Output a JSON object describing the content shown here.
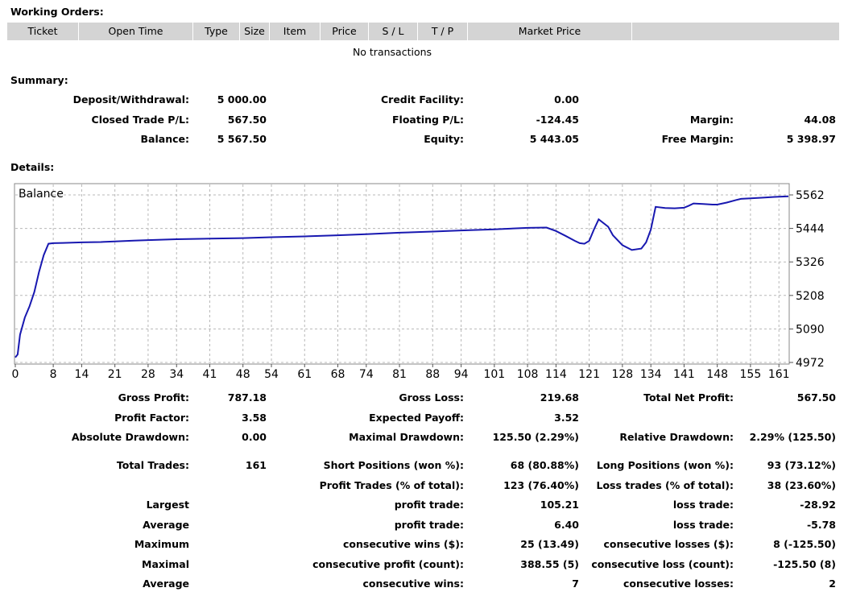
{
  "working_orders": {
    "title": "Working Orders:",
    "columns": [
      "Ticket",
      "Open Time",
      "Type",
      "Size",
      "Item",
      "Price",
      "S / L",
      "T / P",
      "Market Price",
      ""
    ],
    "empty_text": "No transactions"
  },
  "summary": {
    "title": "Summary:",
    "deposit_label": "Deposit/Withdrawal:",
    "deposit_value": "5 000.00",
    "credit_label": "Credit Facility:",
    "credit_value": "0.00",
    "closed_pl_label": "Closed Trade P/L:",
    "closed_pl_value": "567.50",
    "floating_pl_label": "Floating P/L:",
    "floating_pl_value": "-124.45",
    "margin_label": "Margin:",
    "margin_value": "44.08",
    "balance_label": "Balance:",
    "balance_value": "5 567.50",
    "equity_label": "Equity:",
    "equity_value": "5 443.05",
    "free_margin_label": "Free Margin:",
    "free_margin_value": "5 398.97"
  },
  "details": {
    "title": "Details:",
    "gross_profit_label": "Gross Profit:",
    "gross_profit_value": "787.18",
    "gross_loss_label": "Gross Loss:",
    "gross_loss_value": "219.68",
    "total_net_label": "Total Net Profit:",
    "total_net_value": "567.50",
    "profit_factor_label": "Profit Factor:",
    "profit_factor_value": "3.58",
    "expected_payoff_label": "Expected Payoff:",
    "expected_payoff_value": "3.52",
    "abs_dd_label": "Absolute Drawdown:",
    "abs_dd_value": "0.00",
    "max_dd_label": "Maximal Drawdown:",
    "max_dd_value": "125.50 (2.29%)",
    "rel_dd_label": "Relative Drawdown:",
    "rel_dd_value": "2.29% (125.50)",
    "total_trades_label": "Total Trades:",
    "total_trades_value": "161",
    "short_label": "Short Positions (won %):",
    "short_value": "68 (80.88%)",
    "long_label": "Long Positions (won %):",
    "long_value": "93 (73.12%)",
    "profit_trades_label": "Profit Trades (% of total):",
    "profit_trades_value": "123 (76.40%)",
    "loss_trades_label": "Loss trades (% of total):",
    "loss_trades_value": "38 (23.60%)",
    "largest_label": "Largest",
    "largest_profit_label": "profit trade:",
    "largest_profit_value": "105.21",
    "largest_loss_label": "loss trade:",
    "largest_loss_value": "-28.92",
    "average_label": "Average",
    "average_profit_label": "profit trade:",
    "average_profit_value": "6.40",
    "average_loss_label": "loss trade:",
    "average_loss_value": "-5.78",
    "maximum_label": "Maximum",
    "max_cons_wins_label": "consecutive wins ($):",
    "max_cons_wins_value": "25 (13.49)",
    "max_cons_losses_label": "consecutive losses ($):",
    "max_cons_losses_value": "8 (-125.50)",
    "maximal_label": "Maximal",
    "maximal_cons_profit_label": "consecutive profit (count):",
    "maximal_cons_profit_value": "388.55 (5)",
    "maximal_cons_loss_label": "consecutive loss (count):",
    "maximal_cons_loss_value": "-125.50 (8)",
    "average2_label": "Average",
    "avg_cons_wins_label": "consecutive wins:",
    "avg_cons_wins_value": "7",
    "avg_cons_losses_label": "consecutive losses:",
    "avg_cons_losses_value": "2"
  },
  "chart_data": {
    "type": "line",
    "legend": "Balance",
    "line_color": "#1818b0",
    "x_ticks": [
      0,
      8,
      14,
      21,
      28,
      34,
      41,
      48,
      54,
      61,
      68,
      74,
      81,
      88,
      94,
      101,
      108,
      114,
      121,
      128,
      134,
      141,
      148,
      155,
      161
    ],
    "y_ticks": [
      4972,
      5090,
      5208,
      5326,
      5444,
      5562
    ],
    "xlim": [
      0,
      163
    ],
    "ylim": [
      4972,
      5562
    ],
    "series": [
      {
        "name": "Balance",
        "x": [
          0,
          0.5,
          1,
          2,
          3,
          4,
          5,
          6,
          7,
          8,
          10,
          14,
          18,
          21,
          25,
          28,
          34,
          41,
          48,
          54,
          61,
          68,
          74,
          81,
          88,
          94,
          101,
          108,
          112,
          114,
          116,
          118,
          119,
          120,
          121,
          122,
          123,
          125,
          126,
          128,
          130,
          132,
          133,
          134,
          135,
          137,
          139,
          140,
          141,
          142,
          143,
          145,
          147,
          148,
          150,
          152,
          153,
          155,
          158,
          160,
          163
        ],
        "y": [
          4990,
          5000,
          5070,
          5130,
          5170,
          5220,
          5290,
          5350,
          5390,
          5392,
          5393,
          5395,
          5396,
          5398,
          5401,
          5403,
          5406,
          5408,
          5410,
          5413,
          5416,
          5420,
          5424,
          5429,
          5433,
          5437,
          5441,
          5446,
          5447,
          5435,
          5418,
          5400,
          5392,
          5390,
          5400,
          5440,
          5476,
          5450,
          5420,
          5385,
          5368,
          5373,
          5395,
          5440,
          5520,
          5516,
          5515,
          5516,
          5517,
          5524,
          5532,
          5530,
          5528,
          5528,
          5535,
          5544,
          5548,
          5550,
          5553,
          5555,
          5557
        ]
      }
    ]
  }
}
